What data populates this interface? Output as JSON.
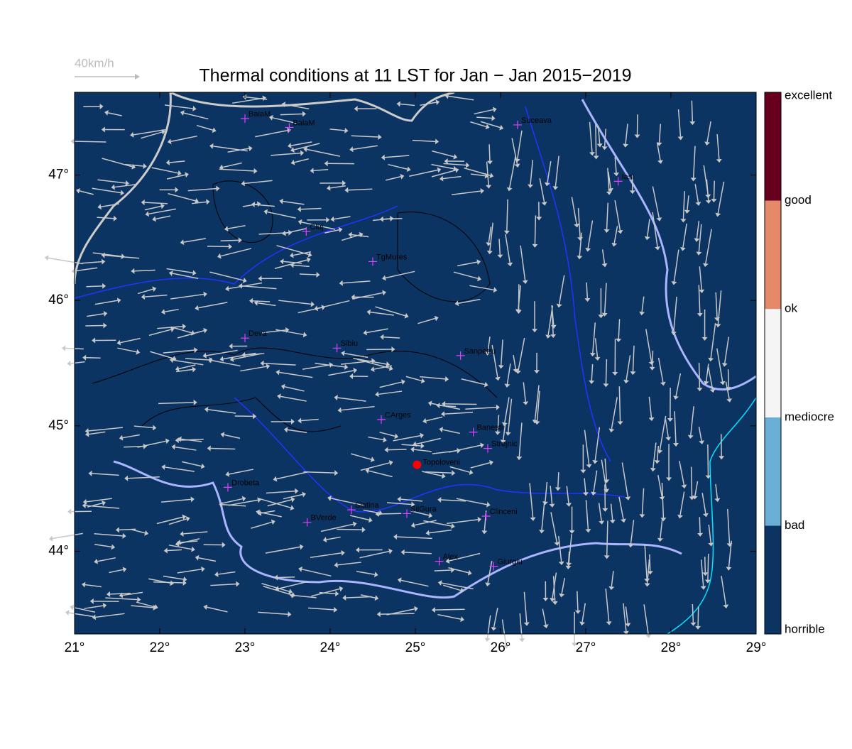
{
  "title": "Thermal conditions at 11 LST for Jan − Jan  2015−2019",
  "scale_label": "40km/h",
  "xaxis": {
    "lim": [
      21,
      29
    ],
    "ticks": [
      {
        "value": 21,
        "label": "21°"
      },
      {
        "value": 22,
        "label": "22°"
      },
      {
        "value": 23,
        "label": "23°"
      },
      {
        "value": 24,
        "label": "24°"
      },
      {
        "value": 25,
        "label": "25°"
      },
      {
        "value": 26,
        "label": "26°"
      },
      {
        "value": 27,
        "label": "27°"
      },
      {
        "value": 28,
        "label": "28°"
      },
      {
        "value": 29,
        "label": "29°"
      }
    ]
  },
  "yaxis": {
    "lim": [
      43.34,
      47.66
    ],
    "ticks": [
      {
        "value": 44,
        "label": "44°"
      },
      {
        "value": 45,
        "label": "45°"
      },
      {
        "value": 46,
        "label": "46°"
      },
      {
        "value": 47,
        "label": "47°"
      }
    ]
  },
  "colorbar": {
    "labels": [
      "horrible",
      "bad",
      "mediocre",
      "ok",
      "good",
      "excellent"
    ],
    "colors": [
      "#0b3463",
      "#6baed6",
      "#f5f5f5",
      "#e5896b",
      "#67001f"
    ]
  },
  "cities": [
    {
      "name": "BaiaM",
      "lon": 23.0,
      "lat": 47.45
    },
    {
      "name": "BaiaM",
      "lon": 23.52,
      "lat": 47.38
    },
    {
      "name": "Suceava",
      "lon": 26.2,
      "lat": 47.4
    },
    {
      "name": "Iasi",
      "lon": 27.38,
      "lat": 46.95
    },
    {
      "name": "Cluj",
      "lon": 23.72,
      "lat": 46.55
    },
    {
      "name": "TgMures",
      "lon": 24.5,
      "lat": 46.31
    },
    {
      "name": "Deva",
      "lon": 23.0,
      "lat": 45.7
    },
    {
      "name": "Sibiu",
      "lon": 24.08,
      "lat": 45.62
    },
    {
      "name": "Sanpetru",
      "lon": 25.53,
      "lat": 45.56
    },
    {
      "name": "CArges",
      "lon": 24.6,
      "lat": 45.05
    },
    {
      "name": "Banesti",
      "lon": 25.68,
      "lat": 44.95
    },
    {
      "name": "Strejnic",
      "lon": 25.85,
      "lat": 44.82
    },
    {
      "name": "Drobeta",
      "lon": 22.8,
      "lat": 44.51
    },
    {
      "name": "Slatina",
      "lon": 24.25,
      "lat": 44.33
    },
    {
      "name": "SilGura",
      "lon": 24.9,
      "lat": 44.3
    },
    {
      "name": "BVerde",
      "lon": 23.73,
      "lat": 44.23
    },
    {
      "name": "Clinceni",
      "lon": 25.83,
      "lat": 44.28
    },
    {
      "name": "Alex",
      "lon": 25.28,
      "lat": 43.92
    },
    {
      "name": "Giurgiu",
      "lon": 25.92,
      "lat": 43.88
    }
  ],
  "site": {
    "name": "Topoloveni",
    "lon": 25.02,
    "lat": 44.69,
    "color": "#ff0000"
  }
}
